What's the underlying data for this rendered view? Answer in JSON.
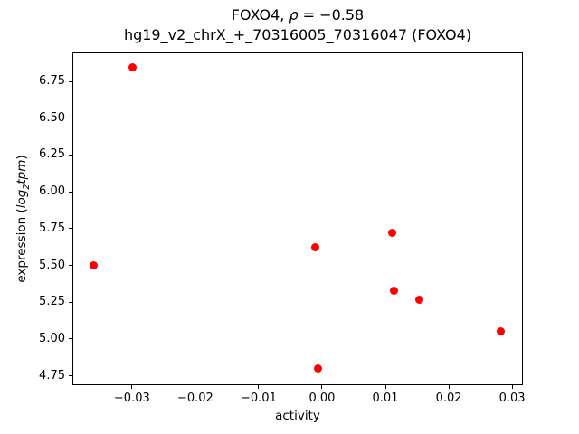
{
  "chart_data": {
    "type": "scatter",
    "title": {
      "part1": "FOXO4, ",
      "rho": "ρ",
      "part2": " = −0.58",
      "line2": "hg19_v2_chrX_+_70316005_70316047 (FOXO4)"
    },
    "xlabel": "activity",
    "ylabel": {
      "prefix": "expression (",
      "math_main": "log",
      "math_sub": "2",
      "math_rest": "tpm",
      "suffix": ")"
    },
    "x": [
      -0.0299,
      -0.0361,
      -0.001,
      0.011,
      0.0114,
      0.0153,
      0.0282,
      -0.0006
    ],
    "y": [
      6.845,
      5.503,
      5.625,
      5.724,
      5.331,
      5.265,
      5.053,
      4.801
    ],
    "xlim": [
      -0.0394,
      0.0317
    ],
    "ylim": [
      4.686,
      6.947
    ],
    "xticks": [
      -0.03,
      -0.02,
      -0.01,
      0.0,
      0.01,
      0.02,
      0.03
    ],
    "xtick_labels": [
      "−0.03",
      "−0.02",
      "−0.01",
      "0.00",
      "0.01",
      "0.02",
      "0.03"
    ],
    "yticks": [
      4.75,
      5.0,
      5.25,
      5.5,
      5.75,
      6.0,
      6.25,
      6.5,
      6.75
    ],
    "ytick_labels": [
      "4.75",
      "5.00",
      "5.25",
      "5.50",
      "5.75",
      "6.00",
      "6.25",
      "6.50",
      "6.75"
    ],
    "marker_color": "#ff0000",
    "grid": false,
    "legend": "none"
  }
}
